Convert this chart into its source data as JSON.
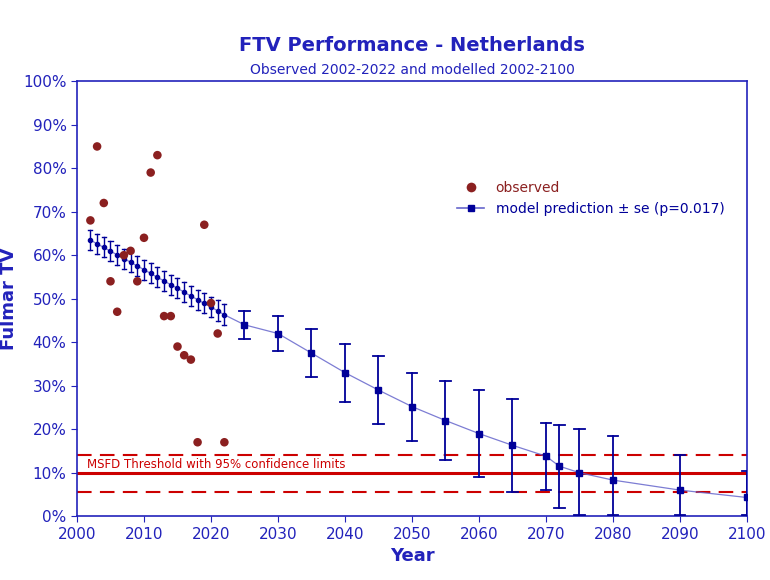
{
  "title": "FTV Performance - Netherlands",
  "subtitle": "Observed 2002-2022 and modelled 2002-2100",
  "xlabel": "Year",
  "ylabel": "Fulmar TV",
  "title_color": "#2222BB",
  "subtitle_color": "#2222BB",
  "axis_label_color": "#2222BB",
  "tick_color": "#2222BB",
  "spine_color": "#2222BB",
  "observed_years": [
    2002,
    2003,
    2004,
    2005,
    2006,
    2007,
    2008,
    2009,
    2010,
    2011,
    2012,
    2013,
    2014,
    2015,
    2016,
    2017,
    2018,
    2019,
    2020,
    2021,
    2022
  ],
  "observed_values": [
    0.68,
    0.85,
    0.72,
    0.54,
    0.47,
    0.6,
    0.61,
    0.54,
    0.64,
    0.79,
    0.83,
    0.46,
    0.46,
    0.39,
    0.37,
    0.36,
    0.17,
    0.67,
    0.49,
    0.42,
    0.17
  ],
  "model_dense_years": [
    2002,
    2003,
    2004,
    2005,
    2006,
    2007,
    2008,
    2009,
    2010,
    2011,
    2012,
    2013,
    2014,
    2015,
    2016,
    2017,
    2018,
    2019,
    2020,
    2021,
    2022
  ],
  "model_dense_values": [
    0.635,
    0.626,
    0.618,
    0.609,
    0.601,
    0.592,
    0.584,
    0.575,
    0.567,
    0.558,
    0.549,
    0.541,
    0.532,
    0.524,
    0.515,
    0.506,
    0.498,
    0.489,
    0.481,
    0.472,
    0.463
  ],
  "model_dense_upper": [
    0.658,
    0.649,
    0.641,
    0.632,
    0.624,
    0.615,
    0.607,
    0.598,
    0.59,
    0.581,
    0.572,
    0.564,
    0.555,
    0.547,
    0.538,
    0.53,
    0.521,
    0.513,
    0.504,
    0.496,
    0.487
  ],
  "model_dense_lower": [
    0.612,
    0.603,
    0.595,
    0.586,
    0.578,
    0.569,
    0.561,
    0.552,
    0.544,
    0.535,
    0.526,
    0.518,
    0.509,
    0.501,
    0.492,
    0.483,
    0.475,
    0.466,
    0.458,
    0.449,
    0.44
  ],
  "model_sparse_years": [
    2025,
    2030,
    2035,
    2040,
    2045,
    2050,
    2055,
    2060,
    2065,
    2070,
    2072,
    2075,
    2080,
    2090,
    2100
  ],
  "model_sparse_values": [
    0.44,
    0.42,
    0.375,
    0.33,
    0.29,
    0.252,
    0.22,
    0.19,
    0.163,
    0.138,
    0.115,
    0.1,
    0.083,
    0.06,
    0.043
  ],
  "model_sparse_upper": [
    0.472,
    0.46,
    0.43,
    0.397,
    0.368,
    0.33,
    0.31,
    0.29,
    0.27,
    0.215,
    0.21,
    0.2,
    0.185,
    0.14,
    0.105
  ],
  "model_sparse_lower": [
    0.408,
    0.38,
    0.32,
    0.263,
    0.212,
    0.174,
    0.13,
    0.09,
    0.056,
    0.061,
    0.02,
    0.002,
    0.002,
    0.002,
    0.002
  ],
  "msfd_threshold": 0.1,
  "msfd_ci_upper": 0.14,
  "msfd_ci_lower": 0.055,
  "observed_color": "#8B2020",
  "model_color": "#000099",
  "model_line_color": "#6666CC",
  "msfd_color": "#CC0000",
  "msfd_ci_color": "#CC0000",
  "legend_observed_label": "observed",
  "legend_model_label": "model prediction ± se (p=0.017)",
  "ylim": [
    0.0,
    1.0
  ],
  "xlim": [
    2000,
    2100
  ],
  "yticks": [
    0.0,
    0.1,
    0.2,
    0.3,
    0.4,
    0.5,
    0.6,
    0.7,
    0.8,
    0.9,
    1.0
  ],
  "xticks": [
    2000,
    2010,
    2020,
    2030,
    2040,
    2050,
    2060,
    2070,
    2080,
    2090,
    2100
  ]
}
